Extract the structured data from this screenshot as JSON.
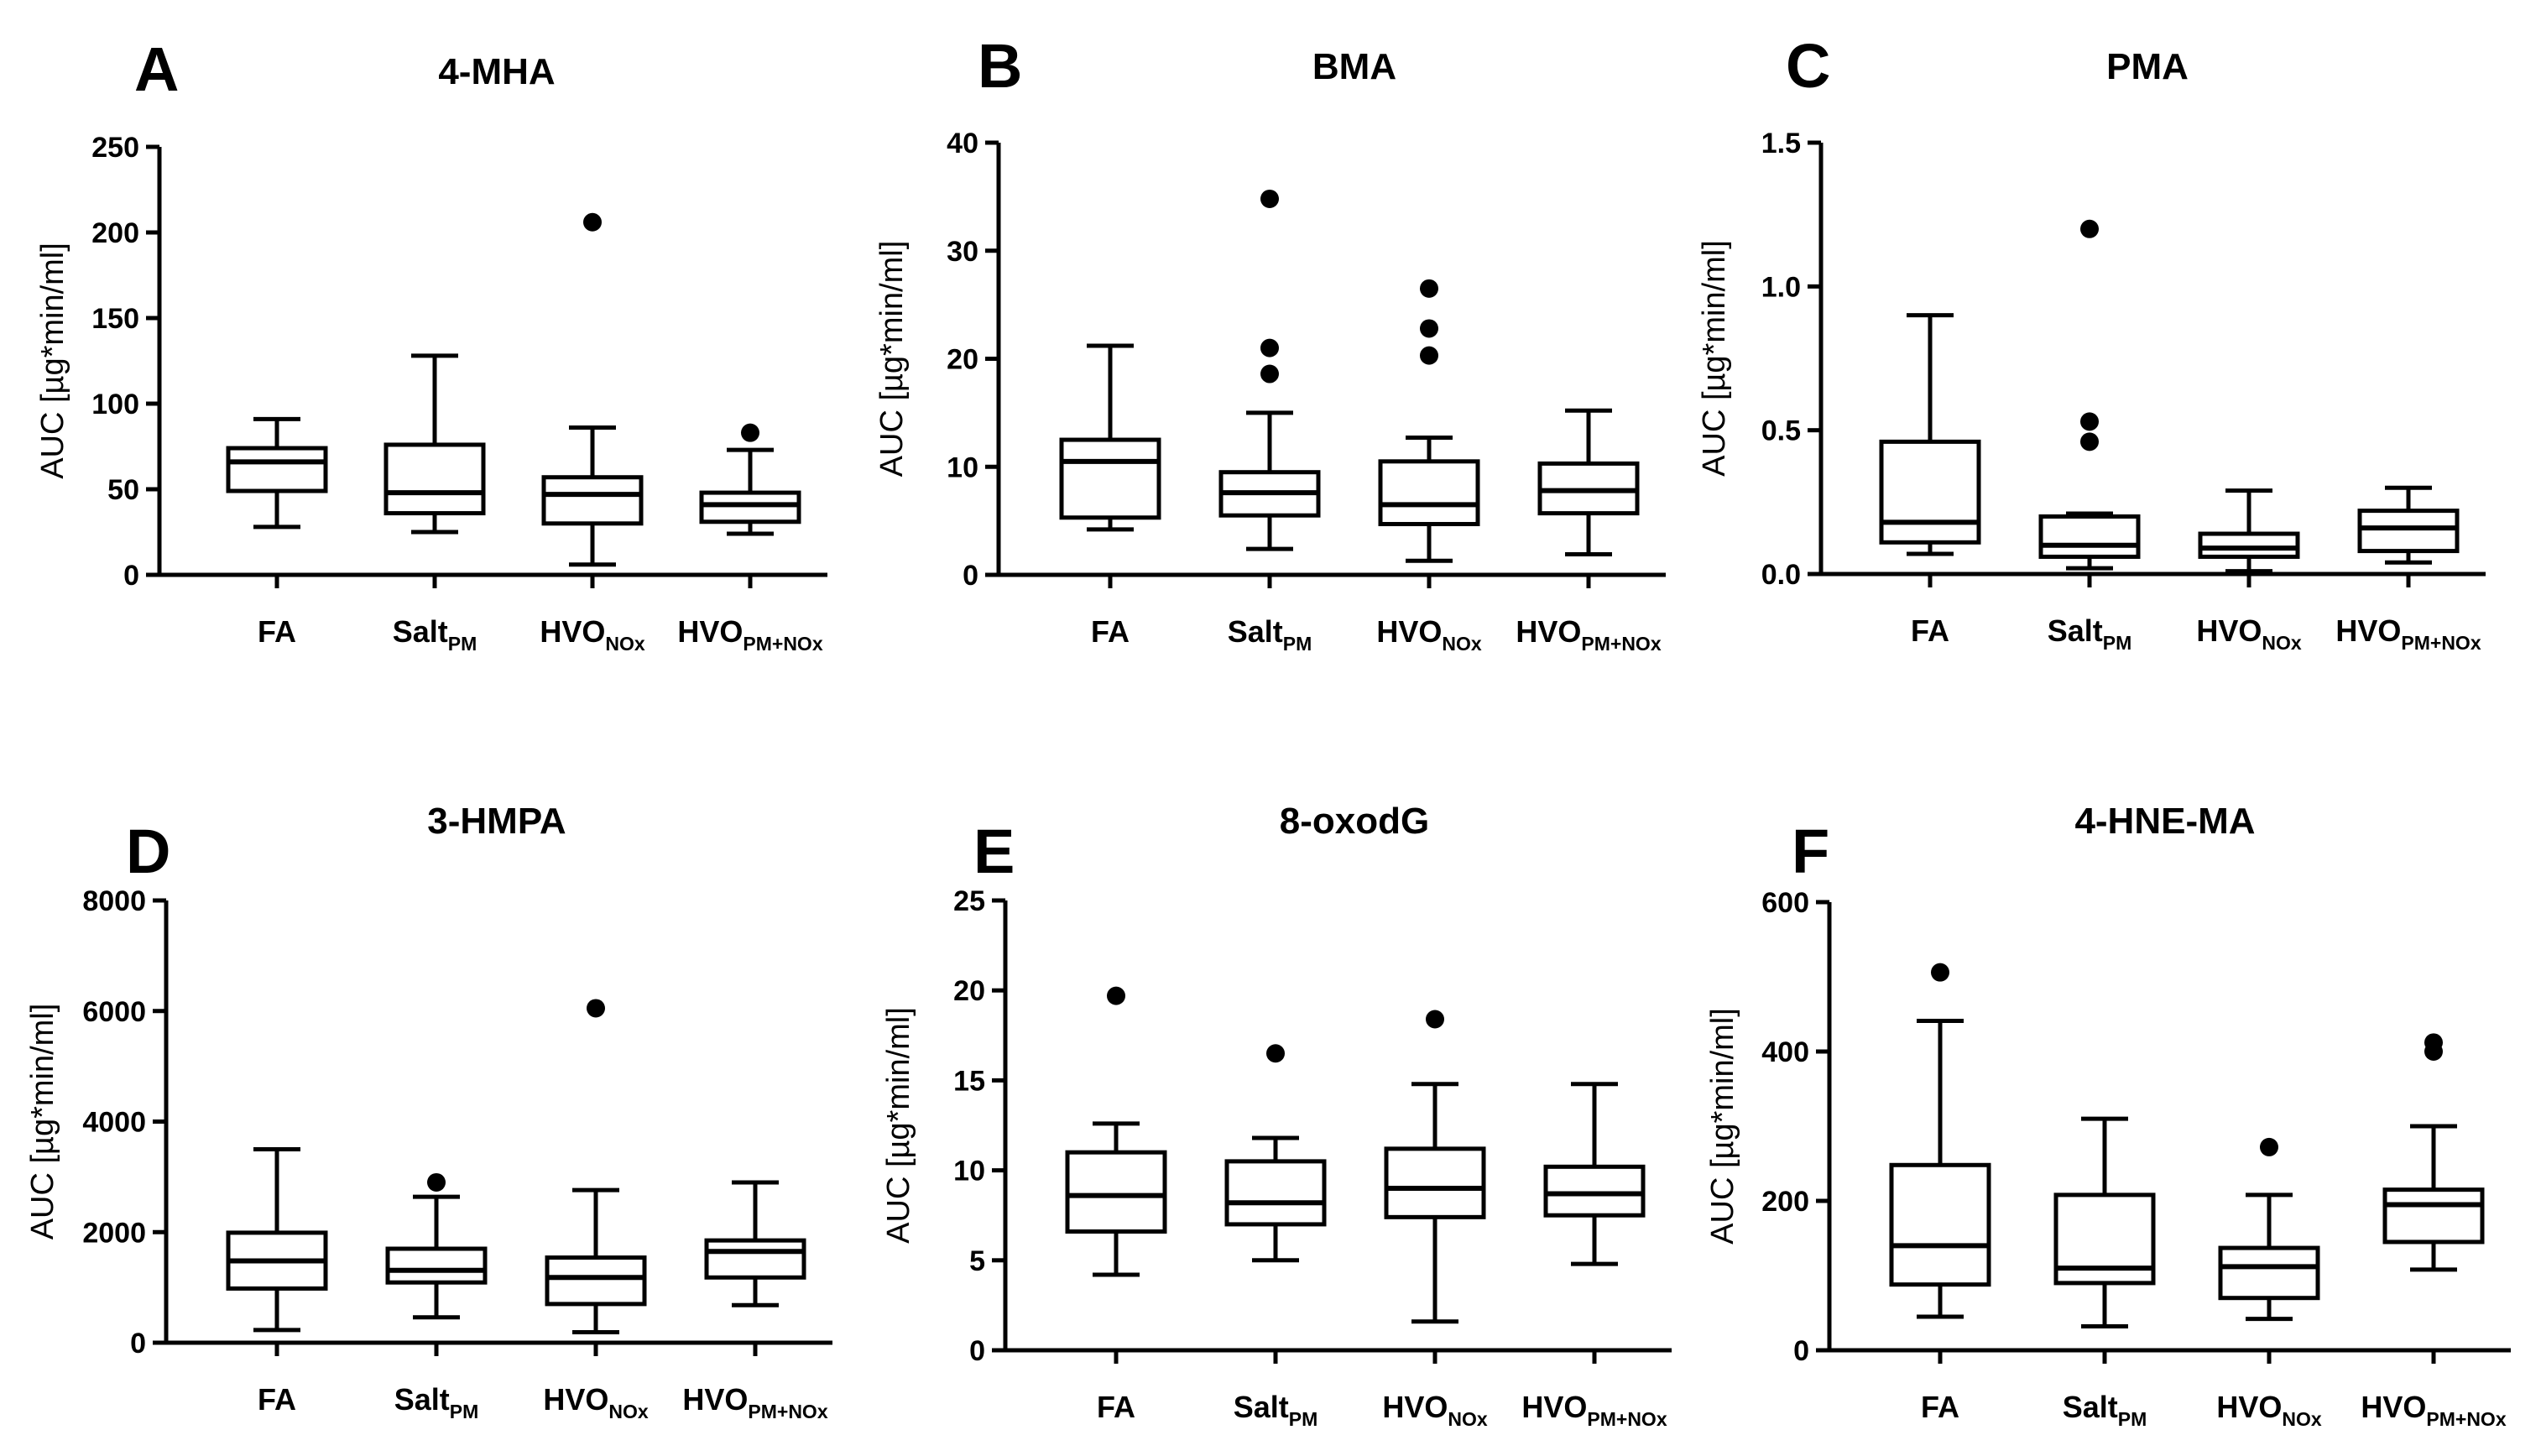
{
  "figure": {
    "y_axis_label": "AUC [µg*min/ml]"
  },
  "chart_data": [
    {
      "type": "box",
      "panel": "A",
      "title": "4-MHA",
      "ylabel": "AUC [µg*min/ml]",
      "ylim": [
        0,
        250
      ],
      "yticks": [
        0,
        50,
        100,
        150,
        200,
        250
      ],
      "categories": [
        {
          "main": "FA",
          "sub": ""
        },
        {
          "main": "Salt",
          "sub": "PM"
        },
        {
          "main": "HVO",
          "sub": "NOx"
        },
        {
          "main": "HVO",
          "sub": "PM+NOx"
        }
      ],
      "boxes": [
        {
          "min": 28,
          "q1": 49,
          "median": 66,
          "q3": 74,
          "max": 91,
          "outliers": []
        },
        {
          "min": 25,
          "q1": 36,
          "median": 48,
          "q3": 76,
          "max": 128,
          "outliers": []
        },
        {
          "min": 6,
          "q1": 30,
          "median": 47,
          "q3": 57,
          "max": 86,
          "outliers": [
            206
          ]
        },
        {
          "min": 24,
          "q1": 31,
          "median": 41,
          "q3": 48,
          "max": 73,
          "outliers": [
            83
          ]
        }
      ]
    },
    {
      "type": "box",
      "panel": "B",
      "title": "BMA",
      "ylabel": "AUC [µg*min/ml]",
      "ylim": [
        0,
        40
      ],
      "yticks": [
        0,
        10,
        20,
        30,
        40
      ],
      "categories": [
        {
          "main": "FA",
          "sub": ""
        },
        {
          "main": "Salt",
          "sub": "PM"
        },
        {
          "main": "HVO",
          "sub": "NOx"
        },
        {
          "main": "HVO",
          "sub": "PM+NOx"
        }
      ],
      "boxes": [
        {
          "min": 4.2,
          "q1": 5.3,
          "median": 10.5,
          "q3": 12.5,
          "max": 21.2,
          "outliers": []
        },
        {
          "min": 2.4,
          "q1": 5.5,
          "median": 7.6,
          "q3": 9.5,
          "max": 15.0,
          "outliers": [
            18.6,
            21.0,
            34.8
          ]
        },
        {
          "min": 1.3,
          "q1": 4.7,
          "median": 6.5,
          "q3": 10.5,
          "max": 12.7,
          "outliers": [
            20.3,
            22.8,
            26.5
          ]
        },
        {
          "min": 1.9,
          "q1": 5.7,
          "median": 7.8,
          "q3": 10.3,
          "max": 15.2,
          "outliers": []
        }
      ]
    },
    {
      "type": "box",
      "panel": "C",
      "title": "PMA",
      "ylabel": "AUC [µg*min/ml]",
      "ylim": [
        0,
        1.5
      ],
      "yticks": [
        0.0,
        0.5,
        1.0,
        1.5
      ],
      "ytick_labels": [
        "0.0",
        "0.5",
        "1.0",
        "1.5"
      ],
      "categories": [
        {
          "main": "FA",
          "sub": ""
        },
        {
          "main": "Salt",
          "sub": "PM"
        },
        {
          "main": "HVO",
          "sub": "NOx"
        },
        {
          "main": "HVO",
          "sub": "PM+NOx"
        }
      ],
      "boxes": [
        {
          "min": 0.07,
          "q1": 0.11,
          "median": 0.18,
          "q3": 0.46,
          "max": 0.9,
          "outliers": []
        },
        {
          "min": 0.02,
          "q1": 0.06,
          "median": 0.1,
          "q3": 0.2,
          "max": 0.21,
          "outliers": [
            0.46,
            0.53,
            1.2
          ]
        },
        {
          "min": 0.01,
          "q1": 0.06,
          "median": 0.09,
          "q3": 0.14,
          "max": 0.29,
          "outliers": []
        },
        {
          "min": 0.04,
          "q1": 0.08,
          "median": 0.16,
          "q3": 0.22,
          "max": 0.3,
          "outliers": []
        }
      ]
    },
    {
      "type": "box",
      "panel": "D",
      "title": "3-HMPA",
      "ylabel": "AUC [µg*min/ml]",
      "ylim": [
        0,
        8000
      ],
      "yticks": [
        0,
        2000,
        4000,
        6000,
        8000
      ],
      "categories": [
        {
          "main": "FA",
          "sub": ""
        },
        {
          "main": "Salt",
          "sub": "PM"
        },
        {
          "main": "HVO",
          "sub": "NOx"
        },
        {
          "main": "HVO",
          "sub": "PM+NOx"
        }
      ],
      "boxes": [
        {
          "min": 230,
          "q1": 980,
          "median": 1480,
          "q3": 1990,
          "max": 3500,
          "outliers": []
        },
        {
          "min": 460,
          "q1": 1090,
          "median": 1310,
          "q3": 1700,
          "max": 2640,
          "outliers": [
            2900
          ]
        },
        {
          "min": 190,
          "q1": 700,
          "median": 1180,
          "q3": 1540,
          "max": 2760,
          "outliers": [
            6050
          ]
        },
        {
          "min": 680,
          "q1": 1180,
          "median": 1650,
          "q3": 1850,
          "max": 2900,
          "outliers": []
        }
      ]
    },
    {
      "type": "box",
      "panel": "E",
      "title": "8-oxodG",
      "ylabel": "AUC [µg*min/ml]",
      "ylim": [
        0,
        25
      ],
      "yticks": [
        0,
        5,
        10,
        15,
        20,
        25
      ],
      "categories": [
        {
          "main": "FA",
          "sub": ""
        },
        {
          "main": "Salt",
          "sub": "PM"
        },
        {
          "main": "HVO",
          "sub": "NOx"
        },
        {
          "main": "HVO",
          "sub": "PM+NOx"
        }
      ],
      "boxes": [
        {
          "min": 4.2,
          "q1": 6.6,
          "median": 8.6,
          "q3": 11.0,
          "max": 12.6,
          "outliers": [
            19.7
          ]
        },
        {
          "min": 5.0,
          "q1": 7.0,
          "median": 8.2,
          "q3": 10.5,
          "max": 11.8,
          "outliers": [
            16.5
          ]
        },
        {
          "min": 1.6,
          "q1": 7.4,
          "median": 9.0,
          "q3": 11.2,
          "max": 14.8,
          "outliers": [
            18.4
          ]
        },
        {
          "min": 4.8,
          "q1": 7.5,
          "median": 8.7,
          "q3": 10.2,
          "max": 14.8,
          "outliers": []
        }
      ]
    },
    {
      "type": "box",
      "panel": "F",
      "title": "4-HNE-MA",
      "ylabel": "AUC [µg*min/ml]",
      "ylim": [
        0,
        600
      ],
      "yticks": [
        0,
        200,
        400,
        600
      ],
      "categories": [
        {
          "main": "FA",
          "sub": ""
        },
        {
          "main": "Salt",
          "sub": "PM"
        },
        {
          "main": "HVO",
          "sub": "NOx"
        },
        {
          "main": "HVO",
          "sub": "PM+NOx"
        }
      ],
      "boxes": [
        {
          "min": 45,
          "q1": 88,
          "median": 140,
          "q3": 248,
          "max": 441,
          "outliers": [
            506
          ]
        },
        {
          "min": 32,
          "q1": 90,
          "median": 110,
          "q3": 208,
          "max": 310,
          "outliers": []
        },
        {
          "min": 42,
          "q1": 70,
          "median": 112,
          "q3": 137,
          "max": 208,
          "outliers": [
            272
          ]
        },
        {
          "min": 108,
          "q1": 145,
          "median": 195,
          "q3": 215,
          "max": 300,
          "outliers": [
            400,
            412
          ]
        }
      ]
    }
  ]
}
